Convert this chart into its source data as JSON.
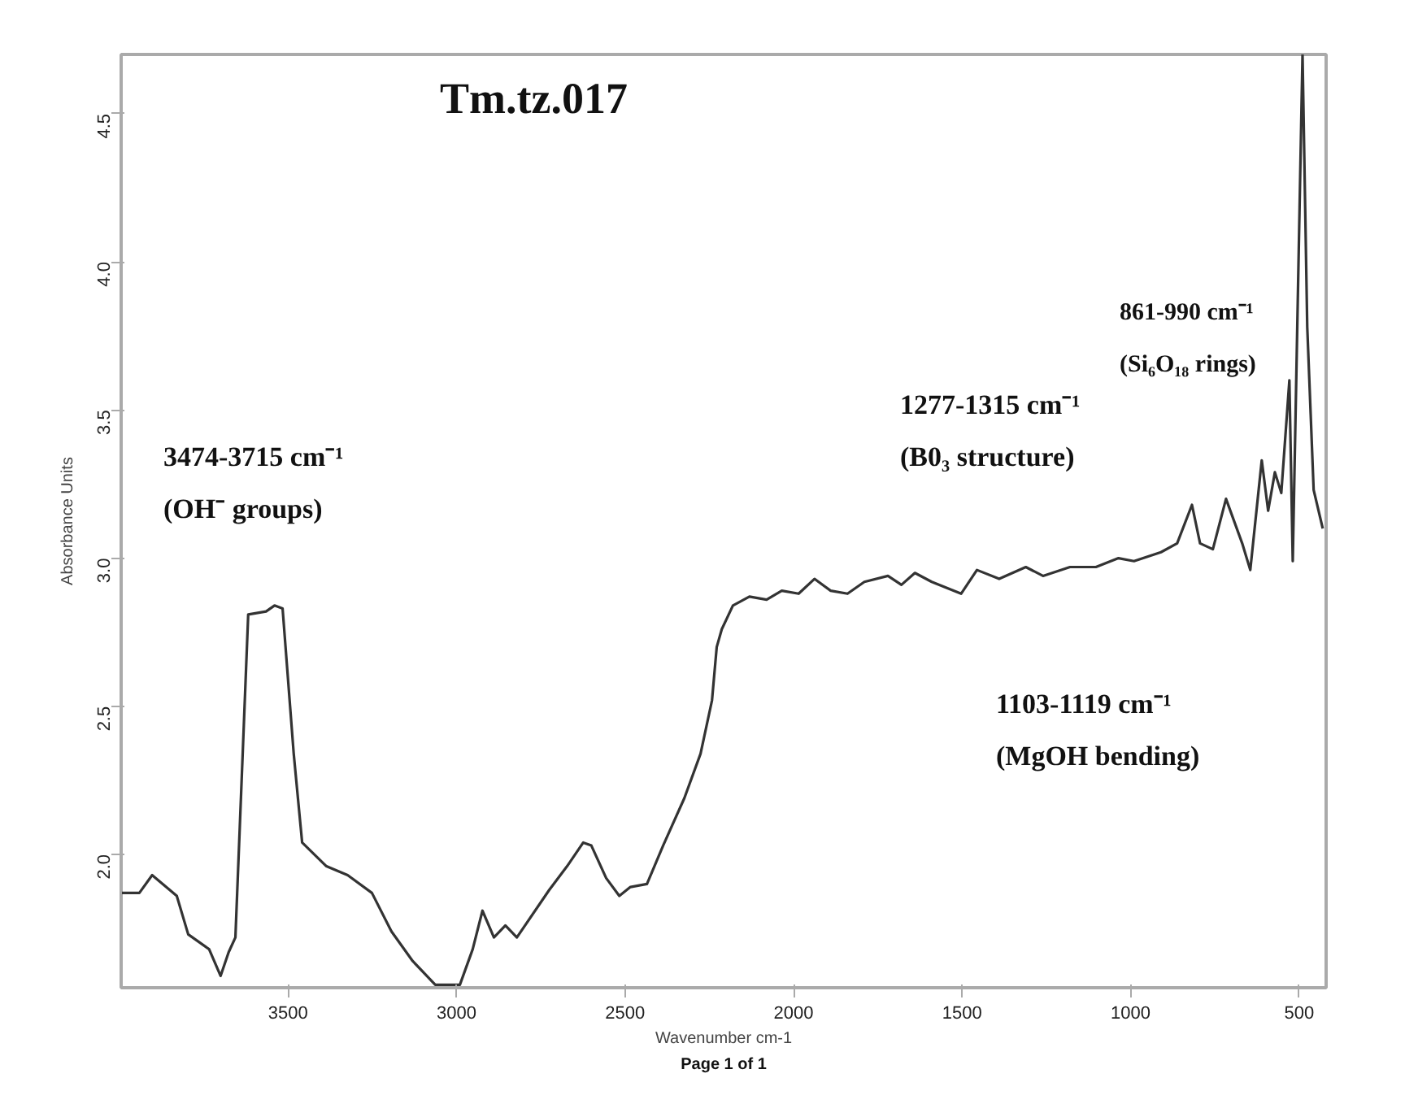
{
  "chart_data": {
    "type": "line",
    "title": "Tm.tz.017",
    "xlabel": "Wavenumber cm-1",
    "ylabel": "Absorbance Units",
    "annotations": [
      "3474-3715 cm⁻¹",
      "(OH⁻ groups)",
      "1277-1315 cm⁻¹",
      "(B0₃ structure)",
      "861-990 cm⁻¹",
      "(Si₆O₁₈ rings)",
      "1103-1119 cm⁻¹",
      "(MgOH bending)",
      "Page 1 of 1"
    ],
    "xlim": [
      3995,
      420
    ],
    "xticks": [
      3500,
      3000,
      2500,
      2000,
      1500,
      1000,
      500
    ],
    "ylim": [
      1.55,
      4.7
    ],
    "yticks": [
      {
        "value": 2,
        "label": "2.0"
      },
      2.5,
      {
        "value": 3,
        "label": "3.0"
      },
      3.5,
      {
        "value": 4,
        "label": "4.0"
      },
      4.5
    ],
    "grid": false,
    "marker": "none",
    "line_style": "solid",
    "series": [
      {
        "color": "#333333",
        "x": [
          3994,
          3941,
          3903,
          3830,
          3796,
          3734,
          3700,
          3676,
          3656,
          3618,
          3565,
          3540,
          3516,
          3483,
          3458,
          3386,
          3323,
          3251,
          3193,
          3130,
          3063,
          2990,
          2952,
          2923,
          2889,
          2855,
          2821,
          2725,
          2672,
          2624,
          2600,
          2556,
          2517,
          2484,
          2435,
          2387,
          2324,
          2276,
          2242,
          2228,
          2213,
          2180,
          2131,
          2080,
          2035,
          1985,
          1938,
          1890,
          1840,
          1790,
          1720,
          1680,
          1640,
          1590,
          1503,
          1456,
          1390,
          1311,
          1260,
          1180,
          1103,
          1036,
          990,
          910,
          862,
          818,
          794,
          756,
          717,
          669,
          645,
          611,
          592,
          572,
          553,
          529,
          519,
          490,
          476,
          457,
          430
        ],
        "values": [
          1.87,
          1.87,
          1.93,
          1.86,
          1.73,
          1.68,
          1.59,
          1.67,
          1.72,
          2.81,
          2.82,
          2.84,
          2.83,
          2.34,
          2.04,
          1.96,
          1.93,
          1.87,
          1.74,
          1.64,
          1.56,
          1.56,
          1.68,
          1.81,
          1.72,
          1.76,
          1.72,
          1.88,
          1.96,
          2.04,
          2.03,
          1.92,
          1.86,
          1.89,
          1.9,
          2.03,
          2.19,
          2.34,
          2.52,
          2.7,
          2.76,
          2.84,
          2.87,
          2.86,
          2.89,
          2.88,
          2.93,
          2.89,
          2.88,
          2.92,
          2.94,
          2.91,
          2.95,
          2.92,
          2.88,
          2.96,
          2.93,
          2.97,
          2.94,
          2.97,
          2.97,
          3.0,
          2.99,
          3.02,
          3.05,
          3.18,
          3.05,
          3.03,
          3.2,
          3.05,
          2.96,
          3.33,
          3.16,
          3.29,
          3.22,
          3.6,
          2.99,
          4.7,
          3.78,
          3.23,
          3.1
        ]
      }
    ]
  }
}
